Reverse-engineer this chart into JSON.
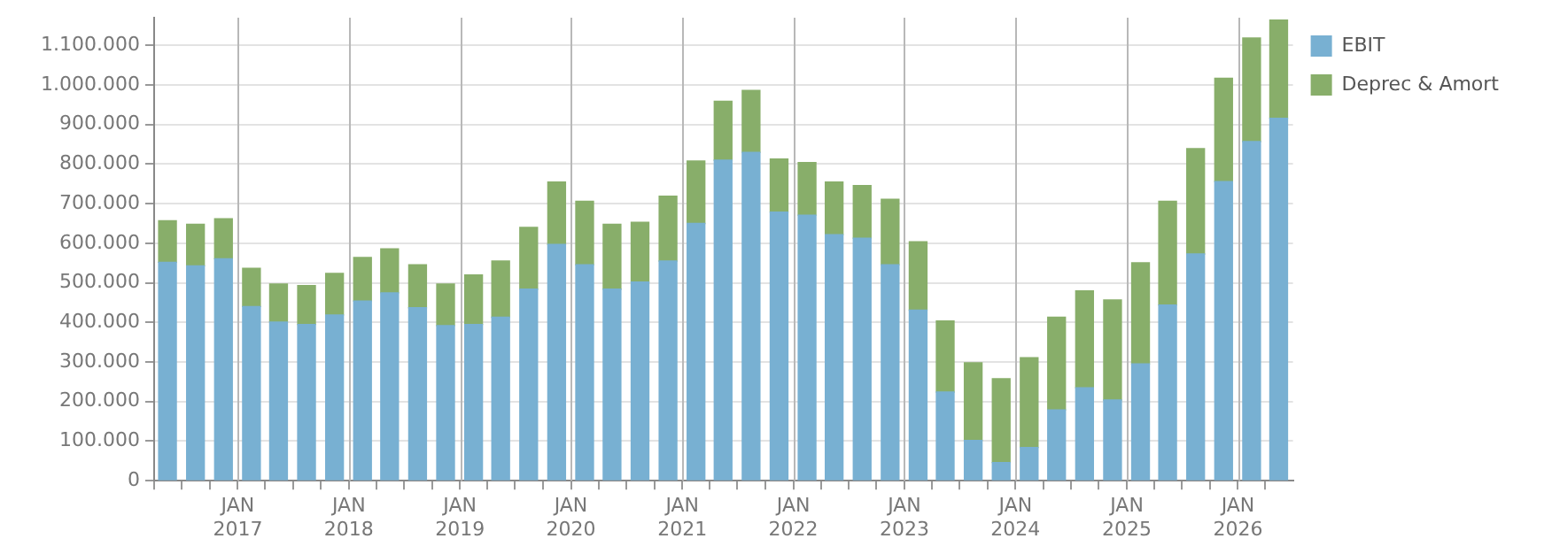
{
  "chart_data": {
    "type": "bar",
    "stacked": true,
    "x": [
      "2016-05-15",
      "2016-08-15",
      "2016-11-15",
      "2017-02-15",
      "2017-05-15",
      "2017-08-15",
      "2017-11-15",
      "2018-02-15",
      "2018-05-15",
      "2018-08-15",
      "2018-11-15",
      "2019-02-15",
      "2019-05-15",
      "2019-08-15",
      "2019-11-15",
      "2020-02-15",
      "2020-05-15",
      "2020-08-15",
      "2020-11-15",
      "2021-02-15",
      "2021-05-15",
      "2021-08-15",
      "2021-11-15",
      "2022-02-15",
      "2022-05-15",
      "2022-08-15",
      "2022-11-15",
      "2023-02-15",
      "2023-05-15",
      "2023-08-15",
      "2023-11-15",
      "2024-02-15",
      "2024-05-15",
      "2024-08-15",
      "2024-11-15",
      "2025-02-15",
      "2025-05-15",
      "2025-08-15",
      "2025-11-15",
      "2026-02-15",
      "2026-05-15"
    ],
    "series": [
      {
        "name": "EBIT",
        "color": "#78b0d2",
        "values": [
          552000,
          543000,
          561000,
          440000,
          401000,
          395000,
          419000,
          454000,
          475000,
          437000,
          392000,
          395000,
          413000,
          484000,
          597000,
          546000,
          484000,
          502000,
          555000,
          650000,
          810000,
          830000,
          679000,
          671000,
          622000,
          613000,
          546000,
          431000,
          224000,
          102000,
          46000,
          84000,
          179000,
          235000,
          204000,
          295000,
          444000,
          573000,
          756000,
          857000,
          916000
        ]
      },
      {
        "name": "Deprec & Amort",
        "color": "#88ae6a",
        "values": [
          105000,
          105000,
          101000,
          97000,
          96000,
          98000,
          105000,
          110000,
          111000,
          109000,
          105000,
          125000,
          142000,
          156000,
          158000,
          160000,
          164000,
          151000,
          164000,
          158000,
          149000,
          156000,
          134000,
          133000,
          133000,
          133000,
          165000,
          173000,
          180000,
          196000,
          212000,
          227000,
          234000,
          245000,
          253000,
          256000,
          262000,
          266000,
          261000,
          262000,
          248000
        ]
      }
    ],
    "xlim": [
      "2016-04-01",
      "2026-07-01"
    ],
    "xticks": [
      {
        "value": "2016-04-01",
        "label": null
      },
      {
        "value": "2016-07-01",
        "label": null
      },
      {
        "value": "2016-10-01",
        "label": null
      },
      {
        "value": "2017-01-01",
        "label": "JAN 2017"
      },
      {
        "value": "2017-04-01",
        "label": null
      },
      {
        "value": "2017-07-01",
        "label": null
      },
      {
        "value": "2017-10-01",
        "label": null
      },
      {
        "value": "2018-01-01",
        "label": "JAN 2018"
      },
      {
        "value": "2018-04-01",
        "label": null
      },
      {
        "value": "2018-07-01",
        "label": null
      },
      {
        "value": "2018-10-01",
        "label": null
      },
      {
        "value": "2019-01-01",
        "label": "JAN 2019"
      },
      {
        "value": "2019-04-01",
        "label": null
      },
      {
        "value": "2019-07-01",
        "label": null
      },
      {
        "value": "2019-10-01",
        "label": null
      },
      {
        "value": "2020-01-01",
        "label": "JAN 2020"
      },
      {
        "value": "2020-04-01",
        "label": null
      },
      {
        "value": "2020-07-01",
        "label": null
      },
      {
        "value": "2020-10-01",
        "label": null
      },
      {
        "value": "2021-01-01",
        "label": "JAN 2021"
      },
      {
        "value": "2021-04-01",
        "label": null
      },
      {
        "value": "2021-07-01",
        "label": null
      },
      {
        "value": "2021-10-01",
        "label": null
      },
      {
        "value": "2022-01-01",
        "label": "JAN 2022"
      },
      {
        "value": "2022-04-01",
        "label": null
      },
      {
        "value": "2022-07-01",
        "label": null
      },
      {
        "value": "2022-10-01",
        "label": null
      },
      {
        "value": "2023-01-01",
        "label": "JAN 2023"
      },
      {
        "value": "2023-04-01",
        "label": null
      },
      {
        "value": "2023-07-01",
        "label": null
      },
      {
        "value": "2023-10-01",
        "label": null
      },
      {
        "value": "2024-01-01",
        "label": "JAN 2024"
      },
      {
        "value": "2024-04-01",
        "label": null
      },
      {
        "value": "2024-07-01",
        "label": null
      },
      {
        "value": "2024-10-01",
        "label": null
      },
      {
        "value": "2025-01-01",
        "label": "JAN 2025"
      },
      {
        "value": "2025-04-01",
        "label": null
      },
      {
        "value": "2025-07-01",
        "label": null
      },
      {
        "value": "2025-10-01",
        "label": null
      },
      {
        "value": "2026-01-01",
        "label": "JAN 2026"
      },
      {
        "value": "2026-04-01",
        "label": null
      }
    ],
    "ylim": [
      0,
      1170000
    ],
    "yticks": [
      {
        "value": 0,
        "label": "0"
      },
      {
        "value": 100000,
        "label": "100.000"
      },
      {
        "value": 200000,
        "label": "200.000"
      },
      {
        "value": 300000,
        "label": "300.000"
      },
      {
        "value": 400000,
        "label": "400.000"
      },
      {
        "value": 500000,
        "label": "500.000"
      },
      {
        "value": 600000,
        "label": "600.000"
      },
      {
        "value": 700000,
        "label": "700.000"
      },
      {
        "value": 800000,
        "label": "800.000"
      },
      {
        "value": 900000,
        "label": "900.000"
      },
      {
        "value": 1000000,
        "label": "1.000.000"
      },
      {
        "value": 1100000,
        "label": "1.100.000"
      }
    ],
    "grid": true,
    "legend": "top right"
  }
}
